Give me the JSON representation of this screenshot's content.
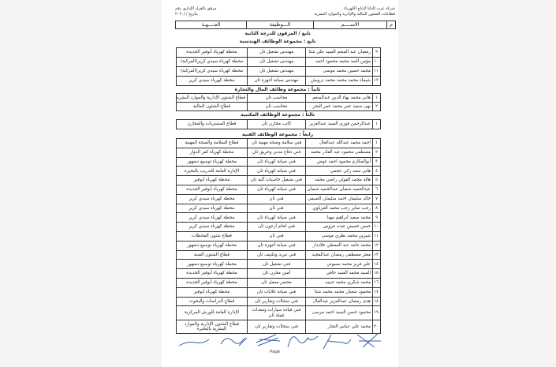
{
  "header": {
    "company_line1": "شركة غرب الدلتا لإنتاج الكهرباء",
    "company_line2": "قطاعات الشئون المالية والإدارية والموارد البشرية",
    "attachment_line1": "مرفق بالقرار الإداري رقم",
    "attachment_line2": "بتاريخ      /      /٢٠٢٠"
  },
  "columns": {
    "num": "م",
    "name": "الاســــم",
    "job": "الـــوظيفة",
    "dept": "الجــــهـة"
  },
  "titles": {
    "promoted": "تابع / المرقون للدرجة الثانية",
    "engineering": "تابع : مجموعة الوظائف الهندسية",
    "finance": "ثانياً : مجموعة وظائف المال والتجارة",
    "clerical": "ثالثاً : مجموعة الوظائف المكتبية",
    "technical": "رابعاً : مجموعة الوظائف الفنية"
  },
  "tables": {
    "engineering": [
      [
        "٩",
        "رمضان عبد المنعم السيد علي شتا",
        "مهندس تشغيل ثان",
        "محطة كهرباء أبوقير الجديدة"
      ],
      [
        "١٠",
        "مؤمن العبد محمد محمود احمد",
        "مهندس تشغيل ثان",
        "محطة كهرباء سيدي كرير(المركبة)"
      ],
      [
        "١١",
        "محمد حسين محمد موسى",
        "مهندس تشغيل ثان",
        "محطة كهرباء سيدي كرير(المركبة)"
      ],
      [
        "١٢",
        "شيماء محمد محمد محمد درويش",
        "مهندس صيانة أجهزة ثان",
        "محطة كهرباء سيدي كرير"
      ]
    ],
    "finance": [
      [
        "١",
        "هاني محمد بهاء الدين عبدالمنعم",
        "محاسب ثان",
        "قطاع الشئون الإدارية والموارد البشرية"
      ],
      [
        "٢",
        "نهى سعيد عمر محمد عمر البحر",
        "محاسب ثان",
        "قطاع الشئون المالية"
      ]
    ],
    "clerical": [
      [
        "١",
        "عبدالرحمن فوزي السيد عبدالعزيز",
        "كاتب مخازن ثان",
        "قطاع المشتريات والمخازن"
      ]
    ],
    "technical": [
      [
        "١",
        "احمد محمد عبدالله عبدالعال",
        "فني سلامة وصحة مهنية ثان",
        "قطاع السلامة والصحة المهنية"
      ],
      [
        "٢",
        "مصطفى محمود عبد القادر محمد",
        "فني دفاع مدني وحريق ثان",
        "محطة كهرباء كفر الدوار"
      ],
      [
        "٣",
        "أبوالمكارم محمود احمد عوض",
        "فني صيانة كهرباء ثان",
        "محطة كهرباء توسيع دمنهور"
      ],
      [
        "٤",
        "هاني سعد زكي عجمي",
        "فني صيانة كهرباء ثان",
        "الإدارة العامة للتدريب بالبحيرة"
      ],
      [
        "٥",
        "هالة محمد الفولي راضي محمد",
        "فني تشغيل حاسبات آلية ثان",
        "محطة كهرباء أبوقير"
      ],
      [
        "٦",
        "عبدالحميد شعبان عبدالحميد شعبان",
        "فني صيانة كهرباء ثان",
        "محطة كهرباء أبوقير الجديدة"
      ],
      [
        "٧",
        "خالد سليمان احمد سليمان الصيفي",
        "فني ثان",
        "محطة كهرباء سيدي كرير"
      ],
      [
        "٨",
        "رجب صابر رجب محمد الغرباوي",
        "فني ثان",
        "محطة كهرباء سيدي كرير"
      ],
      [
        "٩",
        "محمد سعيد ابراهيم مهنا",
        "فني صيانة كهرباء ثان",
        "محطة كهرباء سيدي كرير"
      ],
      [
        "١٠",
        "حسن خميس عبده عروس",
        "فني لحام ارجون ثان",
        "محطة كهرباء سيدي كرير"
      ],
      [
        "١١",
        "شيرين محمد نظري موسى",
        "فني ثان",
        "قطاع شئون المحطات"
      ],
      [
        "١٢",
        "محمد حامد عبد المعطي خلاذدار",
        "فني صيانة أجهزة ثان",
        "محطة كهرباء توسيع دمنهور"
      ],
      [
        "١٣",
        "معتز مصطفى رمضان عبدالمجيد",
        "فني تبريد وتكييف ثان",
        "قطاع الشئون الفنية"
      ],
      [
        "١٤",
        "علي فريز محمد بسيوني",
        "فني تشغيل ثان",
        "محطة كهرباء توسيع دمنهور"
      ],
      [
        "١٥",
        "السيد محمد السيد حافي",
        "أمين مخزن ثان",
        "محطة كهرباء أبوقير الجديدة"
      ],
      [
        "١٦",
        "محمد شكري محمد حبيبه",
        "محضر معمل ثان",
        "محطة كهرباء أبوقير الجديدة"
      ],
      [
        "١٧",
        "محمود شعبان محمد محمد شتا",
        "فني صيانة غلايات ثان",
        "محطة كهرباء أبوقير"
      ],
      [
        "١٨",
        "هدى رمضان عبدالعزيز عبدالعال",
        "فني سجلات وتقارير ثان",
        "قطاع الدراسات والبحوث"
      ],
      [
        "١٩",
        "محمود حسن السيد احمد مرسى",
        "فني قيادة سيارات ومعدات ثقيلة ثان",
        "الإدارة العامة للورش المركزية"
      ],
      [
        "٢٠",
        "محمد علي عباس النجار",
        "فني سجلات وتقارير ثان",
        "قطاع الشئون الإدارية والموارد البشرية بالبحيرة"
      ]
    ]
  },
  "footer": {
    "page_label": "Page"
  },
  "colors": {
    "ink": "#222222",
    "signature": "#3a5fb0"
  }
}
